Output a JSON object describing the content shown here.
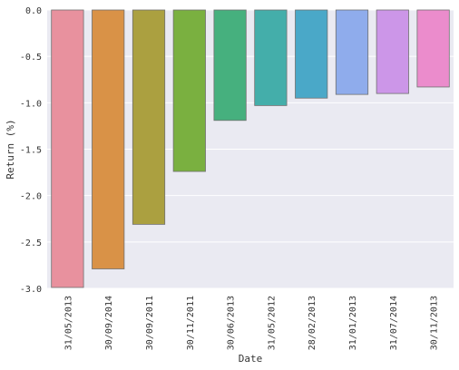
{
  "chart_data": {
    "type": "bar",
    "title": "",
    "xlabel": "Date",
    "ylabel": "Return (%)",
    "ylim": [
      -3.0,
      0.0
    ],
    "yticks": [
      0.0,
      -0.5,
      -1.0,
      -1.5,
      -2.0,
      -2.5,
      -3.0
    ],
    "ytick_labels": [
      "0.0",
      "-0.5",
      "-1.0",
      "-1.5",
      "-2.0",
      "-2.5",
      "-3.0"
    ],
    "grid": true,
    "categories": [
      "31/05/2013",
      "30/09/2014",
      "30/09/2011",
      "30/11/2011",
      "30/06/2013",
      "31/05/2012",
      "28/02/2013",
      "31/01/2013",
      "31/07/2014",
      "30/11/2013"
    ],
    "values": [
      -2.99,
      -2.79,
      -2.31,
      -1.74,
      -1.19,
      -1.03,
      -0.95,
      -0.91,
      -0.9,
      -0.83
    ],
    "colors": [
      "#e8919e",
      "#d99247",
      "#aba040",
      "#7ab040",
      "#46b07e",
      "#44aeaa",
      "#4aa8c8",
      "#8facec",
      "#cc96e8",
      "#eb8ccc"
    ],
    "background": "#eaeaf2",
    "gridColor": "#ffffff"
  }
}
